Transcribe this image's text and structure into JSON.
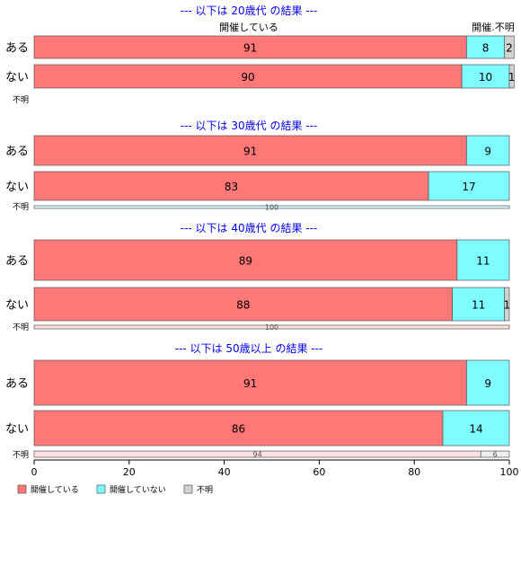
{
  "colors": {
    "held": "#ff7777",
    "not_held": "#7ffcff",
    "unknown": "#d3d3d3",
    "title": "#0000ee",
    "border": "#555555"
  },
  "legend": [
    {
      "label": "開催している",
      "color": "#ff7777"
    },
    {
      "label": "開催していない",
      "color": "#7ffcff"
    },
    {
      "label": "不明",
      "color": "#d3d3d3"
    }
  ],
  "top_labels": {
    "left": "開催している",
    "right": "開催.不明"
  },
  "chart_data": {
    "type": "bar",
    "orientation": "horizontal",
    "stacked": true,
    "xlim": [
      0,
      100
    ],
    "xticks": [
      0,
      20,
      40,
      60,
      80,
      100
    ],
    "series_names": [
      "開催している",
      "開催していない",
      "不明"
    ],
    "panels": [
      {
        "title": "--- 以下は 20歳代 の結果 ---",
        "rows": [
          {
            "label": "ある",
            "values": [
              91,
              8,
              2
            ]
          },
          {
            "label": "ない",
            "values": [
              90,
              10,
              1
            ]
          },
          {
            "label": "不明",
            "values": [
              0,
              0,
              0
            ]
          }
        ]
      },
      {
        "title": "--- 以下は 30歳代 の結果 ---",
        "rows": [
          {
            "label": "ある",
            "values": [
              91,
              9,
              0
            ]
          },
          {
            "label": "ない",
            "values": [
              83,
              17,
              0
            ]
          },
          {
            "label": "不明",
            "values": [
              0,
              100,
              0
            ]
          }
        ]
      },
      {
        "title": "--- 以下は 40歳代 の結果 ---",
        "rows": [
          {
            "label": "ある",
            "values": [
              89,
              11,
              0
            ]
          },
          {
            "label": "ない",
            "values": [
              88,
              11,
              1
            ]
          },
          {
            "label": "不明",
            "values": [
              100,
              0,
              0
            ]
          }
        ]
      },
      {
        "title": "--- 以下は 50歳以上 の結果 ---",
        "rows": [
          {
            "label": "ある",
            "values": [
              91,
              9,
              0
            ]
          },
          {
            "label": "ない",
            "values": [
              86,
              14,
              0
            ]
          },
          {
            "label": "不明",
            "values": [
              94,
              0,
              6
            ]
          }
        ]
      }
    ]
  }
}
